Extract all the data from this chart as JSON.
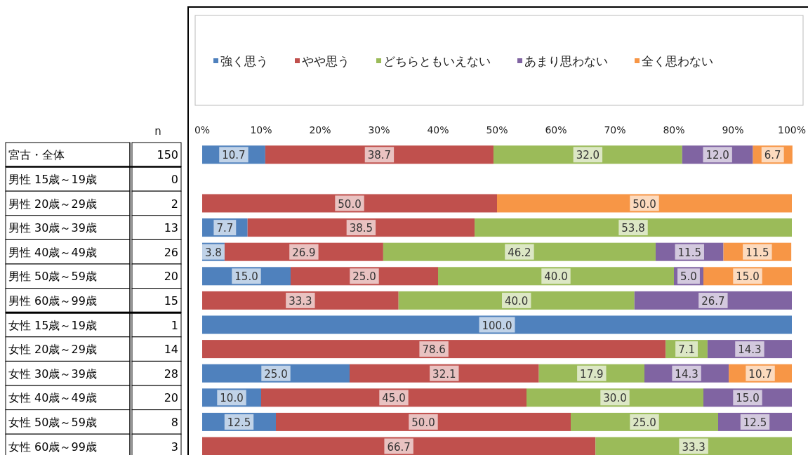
{
  "chart_data": {
    "type": "bar",
    "orientation": "horizontal",
    "stacked": true,
    "legend": "top",
    "xlim": [
      0,
      100
    ],
    "xticks": [
      {
        "value": 0,
        "label": "0%"
      },
      {
        "value": 10,
        "label": "10%"
      },
      {
        "value": 20,
        "label": "20%"
      },
      {
        "value": 30,
        "label": "30%"
      },
      {
        "value": 40,
        "label": "40%"
      },
      {
        "value": 50,
        "label": "50%"
      },
      {
        "value": 60,
        "label": "60%"
      },
      {
        "value": 70,
        "label": "70%"
      },
      {
        "value": 80,
        "label": "80%"
      },
      {
        "value": 90,
        "label": "90%"
      },
      {
        "value": 100,
        "label": "100%"
      }
    ],
    "categories": [
      "宮古・全体",
      "男性 15歳～19歳",
      "男性 20歳～29歳",
      "男性 30歳～39歳",
      "男性 40歳～49歳",
      "男性 50歳～59歳",
      "男性 60歳～99歳",
      "女性 15歳～19歳",
      "女性 20歳～29歳",
      "女性 30歳～39歳",
      "女性 40歳～49歳",
      "女性 50歳～59歳",
      "女性 60歳～99歳"
    ],
    "annotations": [
      "n",
      "150",
      "0",
      "2",
      "13",
      "26",
      "20",
      "15",
      "1",
      "14",
      "28",
      "20",
      "8",
      "3"
    ],
    "series": [
      {
        "name": "強く思う",
        "color": "#4f81bd",
        "values": [
          10.7,
          null,
          null,
          7.7,
          3.8,
          15.0,
          null,
          100,
          null,
          25.0,
          10.0,
          12.5,
          null
        ],
        "value_labels": [
          "10.7",
          null,
          null,
          "7.7",
          "3.8",
          "15.0",
          null,
          "100.0",
          null,
          "25.0",
          "10.0",
          "12.5",
          null
        ]
      },
      {
        "name": "やや思う",
        "color": "#c0504d",
        "values": [
          38.7,
          null,
          50,
          38.5,
          26.9,
          25.0,
          33.3,
          null,
          78.6,
          32.1,
          45.0,
          50.0,
          66.7
        ],
        "value_labels": [
          "38.7",
          null,
          "50.0",
          "38.5",
          "26.9",
          "25.0",
          "33.3",
          null,
          "78.6",
          "32.1",
          "45.0",
          "50.0",
          "66.7"
        ]
      },
      {
        "name": "どちらともいえない",
        "color": "#9bbb59",
        "values": [
          32.0,
          null,
          null,
          53.8,
          46.2,
          40.0,
          40.0,
          null,
          7.1,
          17.9,
          30.0,
          25.0,
          33.3
        ],
        "value_labels": [
          "32.0",
          null,
          null,
          "53.8",
          "46.2",
          "40.0",
          "40.0",
          null,
          "7.1",
          "17.9",
          "30.0",
          "25.0",
          "33.3"
        ]
      },
      {
        "name": "あまり思わない",
        "color": "#8064a2",
        "values": [
          12.0,
          null,
          null,
          null,
          11.5,
          5.0,
          26.7,
          null,
          14.3,
          14.3,
          15.0,
          12.5,
          null
        ],
        "value_labels": [
          "12.0",
          null,
          null,
          null,
          "11.5",
          "5.0",
          "26.7",
          null,
          "14.3",
          "14.3",
          "15.0",
          "12.5",
          null
        ]
      },
      {
        "name": "全く思わない",
        "color": "#f79646",
        "values": [
          6.7,
          null,
          50,
          null,
          11.5,
          15.0,
          null,
          null,
          null,
          10.7,
          null,
          null,
          null
        ],
        "value_labels": [
          "6.7",
          null,
          "50.0",
          null,
          "11.5",
          "15.0",
          null,
          null,
          null,
          "10.7",
          null,
          null,
          null
        ]
      }
    ]
  }
}
